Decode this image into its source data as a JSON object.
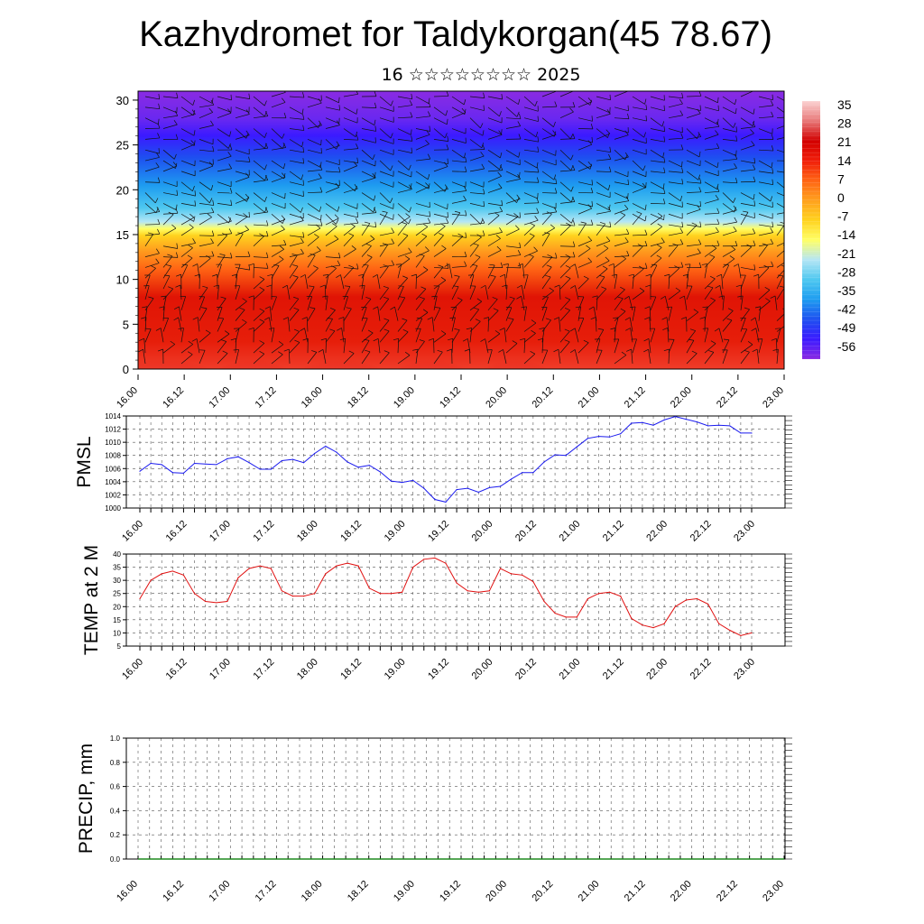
{
  "title": "Kazhydromet for Taldykorgan(45 78.67)",
  "subtitle": "16 ☆☆☆☆☆☆☆☆ 2025",
  "time_ticks": [
    "16.00",
    "16.12",
    "17.00",
    "17.12",
    "18.00",
    "18.12",
    "19.00",
    "19.12",
    "20.00",
    "20.12",
    "21.00",
    "21.12",
    "22.00",
    "22.12",
    "23.00"
  ],
  "colors": {
    "pmsl_line": "#1a1aee",
    "temp_line": "#e01010",
    "precip_line": "#1e8a1e",
    "grid": "#555555"
  },
  "chart_data": [
    {
      "type": "heatmap",
      "name": "vertical-temperature-wind-cross-section",
      "x_labels": [
        "16.00",
        "16.12",
        "17.00",
        "17.12",
        "18.00",
        "18.12",
        "19.00",
        "19.12",
        "20.00",
        "20.12",
        "21.00",
        "21.12",
        "22.00",
        "22.12",
        "23.00"
      ],
      "y_range": [
        0,
        31
      ],
      "y_ticks": [
        0,
        5,
        10,
        15,
        20,
        25,
        30
      ],
      "colorbar_labels": [
        "35",
        "28",
        "21",
        "14",
        "7",
        "0",
        "-7",
        "-14",
        "-21",
        "-28",
        "-35",
        "-42",
        "-49",
        "-56"
      ],
      "colorbar_range": [
        -60,
        38
      ],
      "colormap": [
        "#8a2be2",
        "#3b1aff",
        "#1e50f0",
        "#1e9cf0",
        "#4ec8f0",
        "#b5e6f5",
        "#ffff66",
        "#ffd21e",
        "#ffa01e",
        "#ff6414",
        "#f01e0a",
        "#d20000",
        "#e87878",
        "#fbd2d2"
      ],
      "profile": "temperature decreasing with height; freezing level near 15-16; wind barbs overlaid"
    },
    {
      "type": "line",
      "ylabel": "PMSL",
      "ylim": [
        1000,
        1014
      ],
      "y_ticks": [
        1000,
        1002,
        1004,
        1006,
        1008,
        1010,
        1012,
        1014
      ],
      "x_range": [
        16.0,
        23.0
      ],
      "x_step_hours": 3,
      "series": [
        {
          "values": [
            1005.6,
            1006.8,
            1006.6,
            1005.4,
            1005.3,
            1006.8,
            1006.7,
            1006.6,
            1007.5,
            1007.8,
            1006.9,
            1005.9,
            1005.9,
            1007.2,
            1007.4,
            1006.9,
            1008.3,
            1009.4,
            1008.5,
            1007.0,
            1006.2,
            1006.5,
            1005.5,
            1004.1,
            1003.9,
            1004.2,
            1003.0,
            1001.3,
            1000.9,
            1002.8,
            1003.0,
            1002.4,
            1003.1,
            1003.3,
            1004.4,
            1005.4,
            1005.4,
            1007.0,
            1008.1,
            1008.0,
            1009.3,
            1010.6,
            1010.9,
            1010.8,
            1011.3,
            1012.9,
            1013.0,
            1012.6,
            1013.4,
            1013.9,
            1013.5,
            1013.1,
            1012.5,
            1012.6,
            1012.5,
            1011.4,
            1011.4
          ]
        }
      ]
    },
    {
      "type": "line",
      "ylabel": "TEMP at 2 M",
      "ylim": [
        5,
        40
      ],
      "y_ticks": [
        5,
        10,
        15,
        20,
        25,
        30,
        35,
        40
      ],
      "x_range": [
        16.0,
        23.0
      ],
      "x_step_hours": 3,
      "series": [
        {
          "values": [
            23,
            30,
            32.5,
            33.5,
            32,
            25,
            22,
            21.5,
            22,
            31,
            34.5,
            35.5,
            34.5,
            26,
            24,
            24,
            25,
            32.5,
            35.5,
            36.5,
            35.5,
            27,
            25,
            25,
            25.5,
            35,
            38,
            38.5,
            36.5,
            29,
            26,
            25.5,
            26,
            34.5,
            32.5,
            32,
            29.5,
            22,
            17.5,
            16,
            16,
            23,
            25,
            25.5,
            24,
            15.5,
            13,
            12,
            13.5,
            20,
            22.5,
            23,
            21,
            13.5,
            11,
            9,
            10
          ]
        }
      ]
    },
    {
      "type": "line",
      "ylabel": "PRECIP, mm",
      "ylim": [
        0.0,
        1.0
      ],
      "y_ticks": [
        "0.0",
        "0.2",
        "0.4",
        "0.6",
        "0.8",
        "1.0"
      ],
      "x_range": [
        16.0,
        23.0
      ],
      "x_step_hours": 3,
      "series": [
        {
          "values": [
            0,
            0,
            0,
            0,
            0,
            0,
            0,
            0,
            0,
            0,
            0,
            0,
            0,
            0,
            0,
            0,
            0,
            0,
            0,
            0,
            0,
            0,
            0,
            0,
            0,
            0,
            0,
            0,
            0,
            0,
            0,
            0,
            0,
            0,
            0,
            0,
            0,
            0,
            0,
            0,
            0,
            0,
            0,
            0,
            0,
            0,
            0,
            0,
            0,
            0,
            0,
            0,
            0,
            0,
            0,
            0,
            0
          ]
        }
      ]
    }
  ]
}
